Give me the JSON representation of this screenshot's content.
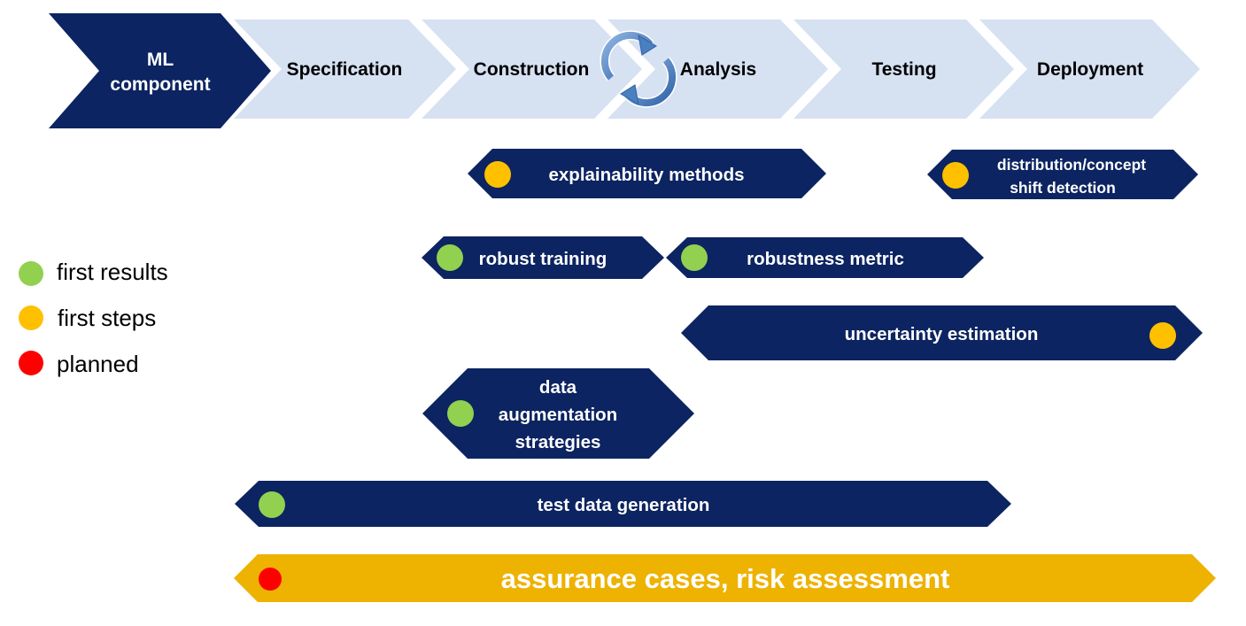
{
  "colors": {
    "navy": "#0c2461",
    "stage_light": "#d6e1f2",
    "amber_bar": "#eeb200",
    "status_green": "#92d050",
    "status_yellow": "#ffc000",
    "status_red": "#ff0000",
    "cycle_blue": "#4a7fc0"
  },
  "pipeline": {
    "stages": [
      {
        "label_line1": "ML",
        "label_line2": "component",
        "highlight": true
      },
      {
        "label": "Specification",
        "highlight": false
      },
      {
        "label": "Construction",
        "highlight": false
      },
      {
        "label": "Analysis",
        "highlight": false
      },
      {
        "label": "Testing",
        "highlight": false
      },
      {
        "label": "Deployment",
        "highlight": false
      }
    ],
    "cycle_icon": "circular-refresh-arrows-icon"
  },
  "bars": [
    {
      "label": "explainability methods",
      "status": "first steps"
    },
    {
      "label_line1": "distribution/concept",
      "label_line2": "shift detection",
      "status": "first steps"
    },
    {
      "label": "robust training",
      "status": "first results"
    },
    {
      "label": "robustness metric",
      "status": "first results"
    },
    {
      "label": "uncertainty estimation",
      "status": "first steps"
    },
    {
      "label_line1": "data",
      "label_line2": "augmentation",
      "label_line3": "strategies",
      "status": "first results"
    },
    {
      "label": "test data generation",
      "status": "first results"
    },
    {
      "label": "assurance cases, risk assessment",
      "status": "planned"
    }
  ],
  "legend": [
    {
      "label": "first results",
      "color": "#92d050"
    },
    {
      "label": "first steps",
      "color": "#ffc000"
    },
    {
      "label": "planned",
      "color": "#ff0000"
    }
  ]
}
